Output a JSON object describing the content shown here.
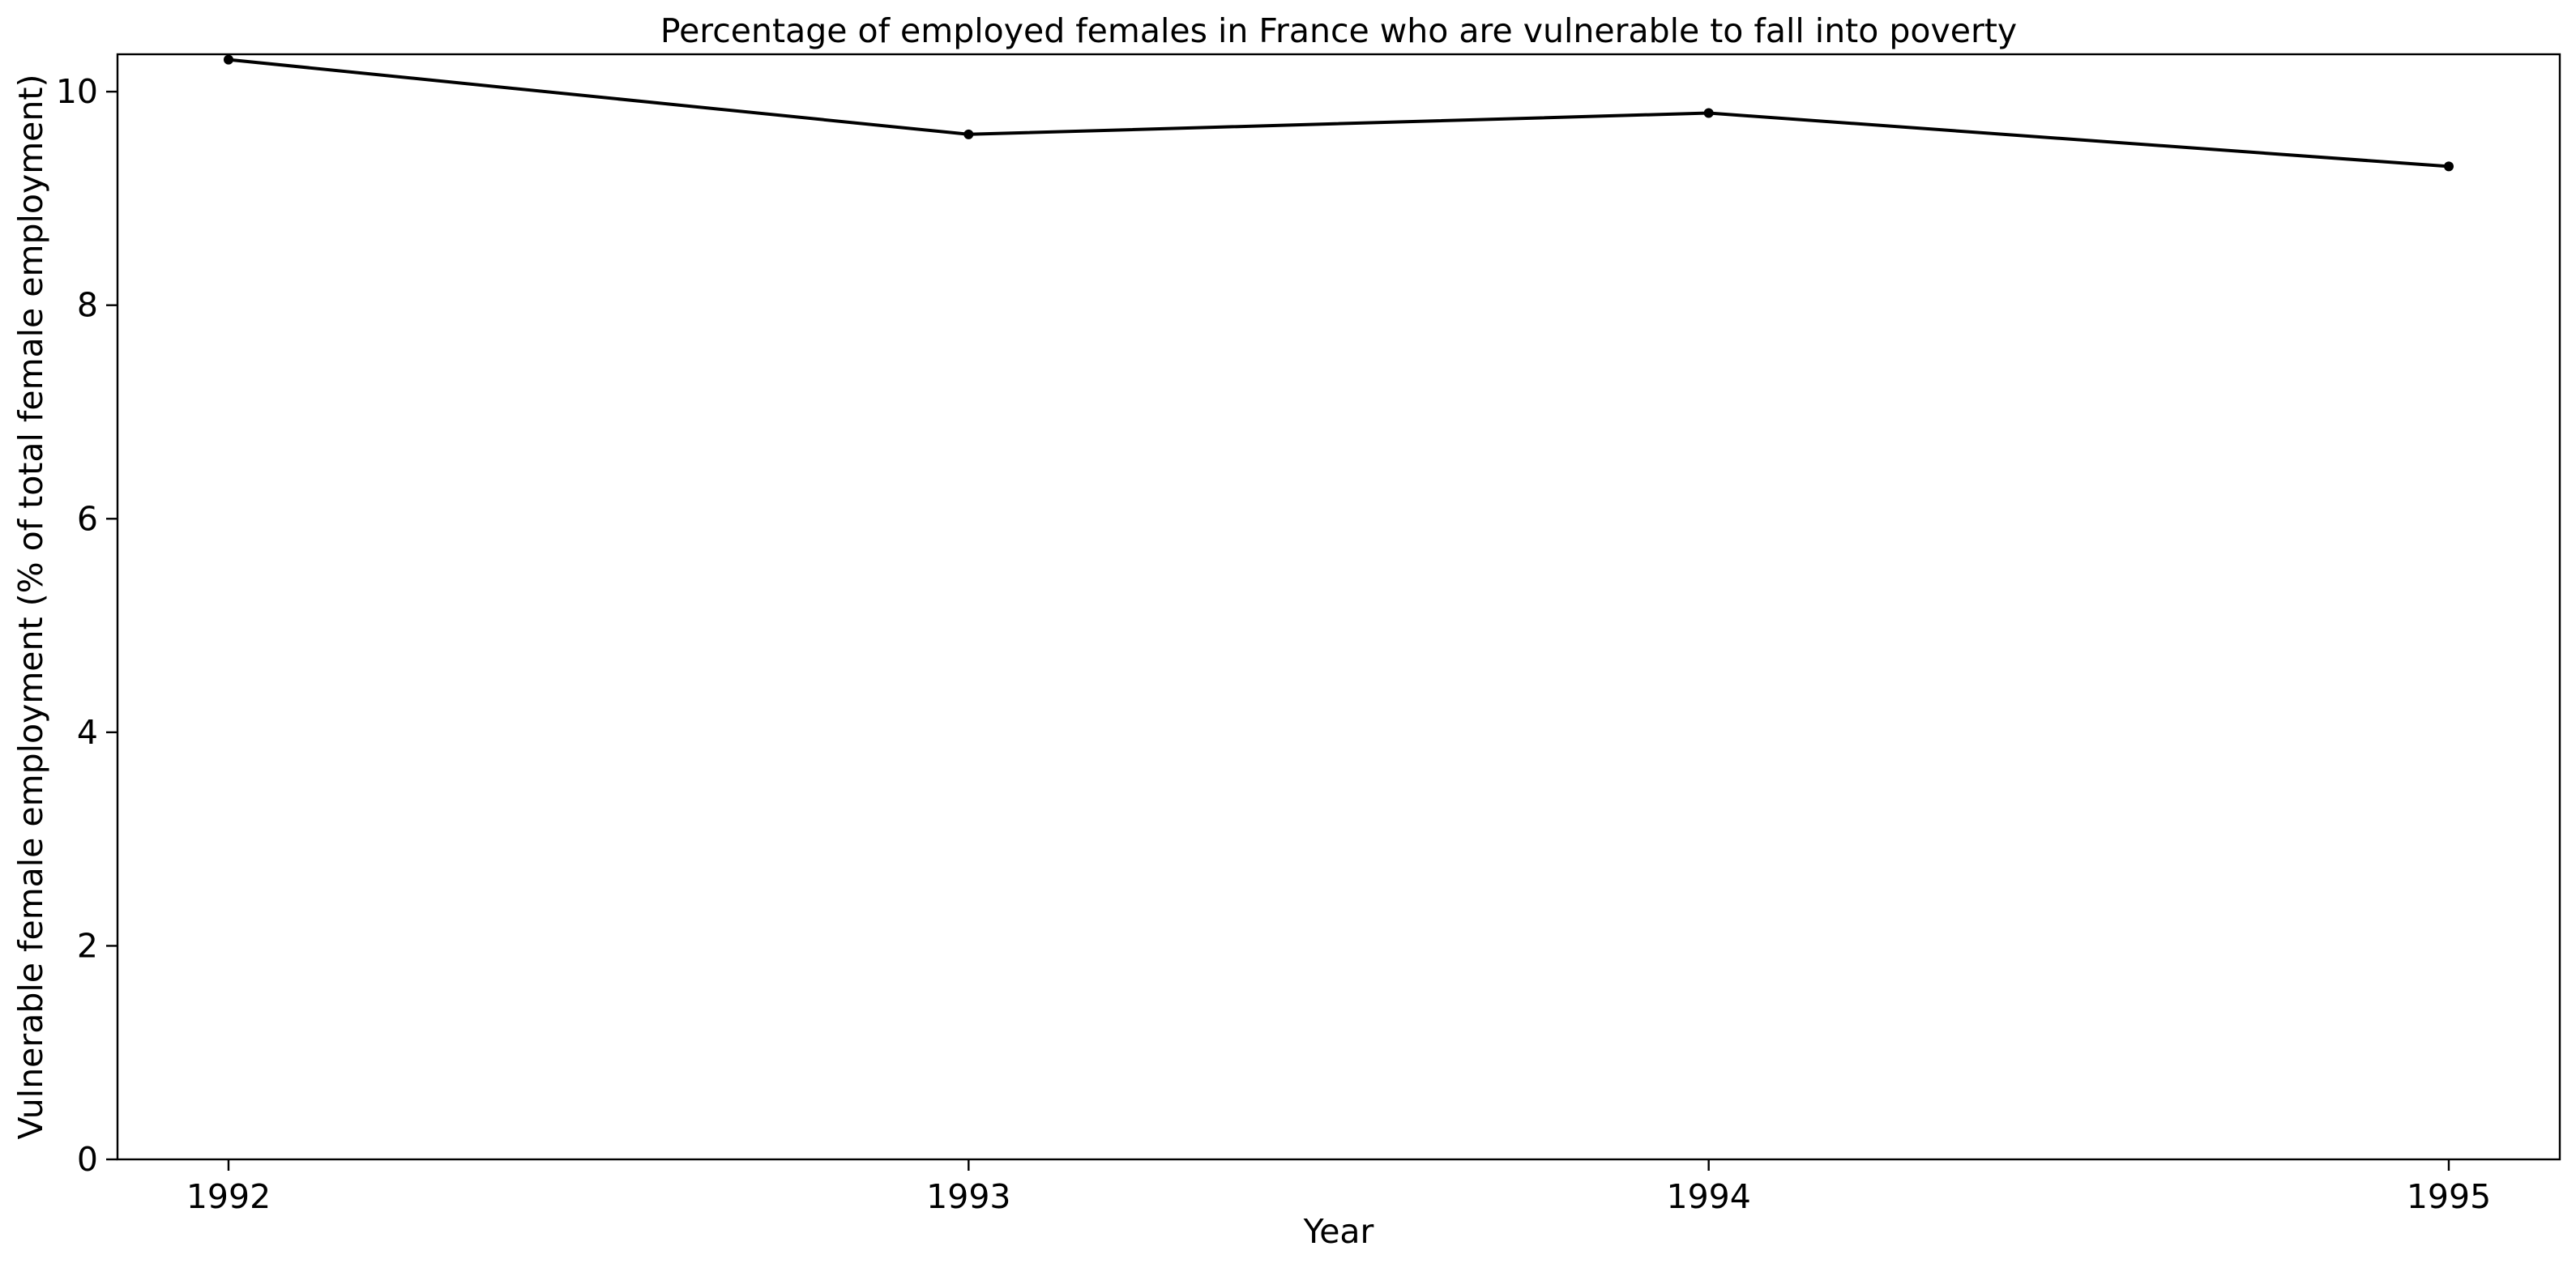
{
  "chart_data": {
    "type": "line",
    "title": "Percentage of employed females in France who are vulnerable to fall into poverty",
    "xlabel": "Year",
    "ylabel": "Vulnerable female employment (% of total female employment)",
    "x": [
      "1992",
      "1993",
      "1994",
      "1995"
    ],
    "xlim": [
      1991.85,
      1995.15
    ],
    "ylim": [
      0,
      10.35
    ],
    "yticks": [
      "0",
      "2",
      "4",
      "6",
      "8",
      "10"
    ],
    "grid": false,
    "legend": "none",
    "series": [
      {
        "color": "#000000",
        "marker": "dot",
        "values": [
          10.3,
          9.6,
          9.8,
          9.3
        ]
      }
    ]
  }
}
